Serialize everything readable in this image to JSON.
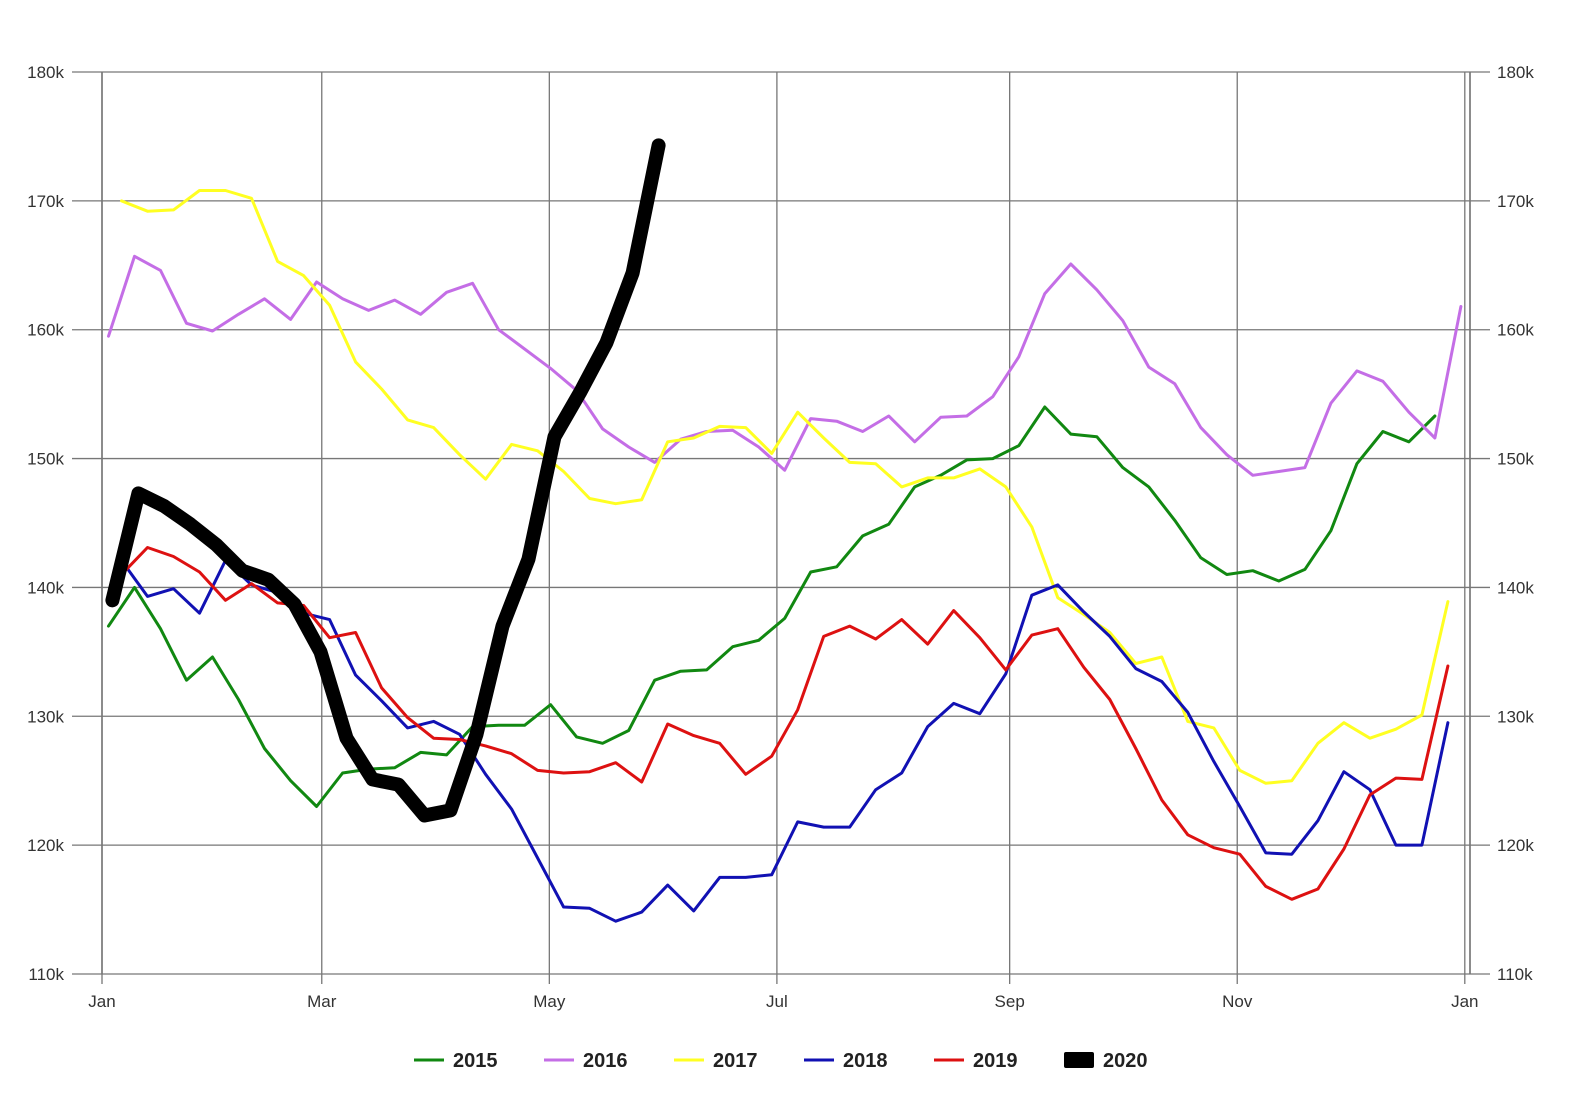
{
  "chart_data": {
    "type": "line",
    "title": "",
    "xlabel": "",
    "ylabel": "",
    "ylim": [
      110000,
      180000
    ],
    "yticks": [
      {
        "value": 110000,
        "label": "110k"
      },
      {
        "value": 120000,
        "label": "120k"
      },
      {
        "value": 130000,
        "label": "130k"
      },
      {
        "value": 140000,
        "label": "140k"
      },
      {
        "value": 150000,
        "label": "150k"
      },
      {
        "value": 160000,
        "label": "160k"
      },
      {
        "value": 170000,
        "label": "170k"
      },
      {
        "value": 180000,
        "label": "180k"
      }
    ],
    "y_axis_right_mirror": true,
    "x_unit": "week of year",
    "xlim": [
      0,
      52.6
    ],
    "xticks": [
      {
        "value": 0,
        "label": "Jan"
      },
      {
        "value": 8.45,
        "label": "Mar"
      },
      {
        "value": 17.2,
        "label": "May"
      },
      {
        "value": 25.95,
        "label": "Jul"
      },
      {
        "value": 34.9,
        "label": "Sep"
      },
      {
        "value": 43.65,
        "label": "Nov"
      },
      {
        "value": 52.4,
        "label": "Jan"
      }
    ],
    "grid": true,
    "legend_position": "bottom",
    "series": [
      {
        "name": "2015",
        "color": "#118811",
        "width": 3,
        "x": [
          0.25,
          1.25,
          2.25,
          3.25,
          4.25,
          5.25,
          6.25,
          7.25,
          8.25,
          9.25,
          10.25,
          11.25,
          12.25,
          13.25,
          14.25,
          15.25,
          16.25,
          17.25,
          18.25,
          19.25,
          20.25,
          21.25,
          22.25,
          23.25,
          24.25,
          25.25,
          26.25,
          27.25,
          28.25,
          29.25,
          30.25,
          31.25,
          32.25,
          33.25,
          34.25,
          35.25,
          36.25,
          37.25,
          38.25,
          39.25,
          40.25,
          41.25,
          42.25,
          43.25,
          44.25,
          45.25,
          46.25,
          47.25,
          48.25,
          49.25,
          50.25,
          51.25
        ],
        "y": [
          137000,
          140000,
          136800,
          132800,
          134600,
          131300,
          127500,
          125000,
          123000,
          125600,
          125900,
          126000,
          127200,
          127000,
          129200,
          129300,
          129300,
          130900,
          128400,
          127900,
          128900,
          132800,
          133500,
          133600,
          135400,
          135900,
          137600,
          141200,
          141600,
          144000,
          144900,
          147800,
          148700,
          149900,
          150000,
          151000,
          154000,
          151900,
          151700,
          149300,
          147800,
          145200,
          142300,
          141000,
          141300,
          140500,
          141400,
          144400,
          149600,
          152100,
          151300,
          153300
        ]
      },
      {
        "name": "2016",
        "color": "#c46ee6",
        "width": 3,
        "x": [
          0.25,
          1.25,
          2.25,
          3.25,
          4.25,
          5.25,
          6.25,
          7.25,
          8.25,
          9.25,
          10.25,
          11.25,
          12.25,
          13.25,
          14.25,
          15.25,
          16.25,
          17.25,
          18.25,
          19.25,
          20.25,
          21.25,
          22.25,
          23.25,
          24.25,
          25.25,
          26.25,
          27.25,
          28.25,
          29.25,
          30.25,
          31.25,
          32.25,
          33.25,
          34.25,
          35.25,
          36.25,
          37.25,
          38.25,
          39.25,
          40.25,
          41.25,
          42.25,
          43.25,
          44.25,
          45.25,
          46.25,
          47.25,
          48.25,
          49.25,
          50.25,
          51.25,
          52.25
        ],
        "y": [
          159500,
          165700,
          164600,
          160500,
          159900,
          161200,
          162400,
          160800,
          163700,
          162400,
          161500,
          162300,
          161200,
          162900,
          163600,
          160000,
          158500,
          157000,
          155300,
          152300,
          150900,
          149700,
          151500,
          152100,
          152200,
          150900,
          149100,
          153100,
          152900,
          152100,
          153300,
          151300,
          153200,
          153300,
          154800,
          157900,
          162800,
          165100,
          163100,
          160700,
          157100,
          155800,
          152400,
          150300,
          148700,
          149000,
          149300,
          154300,
          156800,
          156000,
          153600,
          151600,
          161800
        ]
      },
      {
        "name": "2017",
        "color": "#ffff22",
        "width": 3,
        "x": [
          0.75,
          1.75,
          2.75,
          3.75,
          4.75,
          5.75,
          6.75,
          7.75,
          8.75,
          9.75,
          10.75,
          11.75,
          12.75,
          13.75,
          14.75,
          15.75,
          16.75,
          17.75,
          18.75,
          19.75,
          20.75,
          21.75,
          22.75,
          23.75,
          24.75,
          25.75,
          26.75,
          27.75,
          28.75,
          29.75,
          30.75,
          31.75,
          32.75,
          33.75,
          34.75,
          35.75,
          36.75,
          37.75,
          38.75,
          39.75,
          40.75,
          41.75,
          42.75,
          43.75,
          44.75,
          45.75,
          46.75,
          47.75,
          48.75,
          49.75,
          50.75,
          51.75
        ],
        "y": [
          170000,
          169200,
          169300,
          170800,
          170800,
          170200,
          165300,
          164200,
          161900,
          157500,
          155400,
          153000,
          152400,
          150300,
          148400,
          151100,
          150600,
          149000,
          146900,
          146500,
          146800,
          151300,
          151600,
          152500,
          152400,
          150400,
          153600,
          151600,
          149700,
          149600,
          147800,
          148500,
          148500,
          149200,
          147800,
          144700,
          139200,
          137900,
          136500,
          134100,
          134600,
          129600,
          129100,
          125800,
          124800,
          125000,
          127900,
          129500,
          128300,
          129000,
          130100,
          138900
        ]
      },
      {
        "name": "2018",
        "color": "#1111b3",
        "width": 3,
        "x": [
          0.75,
          1.75,
          2.75,
          3.75,
          4.75,
          5.75,
          6.75,
          7.75,
          8.75,
          9.75,
          10.75,
          11.75,
          12.75,
          13.75,
          14.75,
          15.75,
          16.75,
          17.75,
          18.75,
          19.75,
          20.75,
          21.75,
          22.75,
          23.75,
          24.75,
          25.75,
          26.75,
          27.75,
          28.75,
          29.75,
          30.75,
          31.75,
          32.75,
          33.75,
          34.75,
          35.75,
          36.75,
          37.75,
          38.75,
          39.75,
          40.75,
          41.75,
          42.75,
          43.75,
          44.75,
          45.75,
          46.75,
          47.75,
          48.75,
          49.75,
          50.75,
          51.75
        ],
        "y": [
          142100,
          139300,
          139900,
          138000,
          142100,
          140200,
          139600,
          138000,
          137500,
          133200,
          131200,
          129100,
          129600,
          128600,
          125500,
          122800,
          119000,
          115200,
          115100,
          114100,
          114800,
          116900,
          114900,
          117500,
          117500,
          117700,
          121800,
          121400,
          121400,
          124300,
          125600,
          129200,
          131000,
          130200,
          133300,
          139400,
          140200,
          138100,
          136200,
          133700,
          132700,
          130300,
          126500,
          123000,
          119400,
          119300,
          121900,
          125700,
          124300,
          120000,
          120000,
          129500
        ]
      },
      {
        "name": "2019",
        "color": "#dd1111",
        "width": 3,
        "x": [
          0.75,
          1.75,
          2.75,
          3.75,
          4.75,
          5.75,
          6.75,
          7.75,
          8.75,
          9.75,
          10.75,
          11.75,
          12.75,
          13.75,
          14.75,
          15.75,
          16.75,
          17.75,
          18.75,
          19.75,
          20.75,
          21.75,
          22.75,
          23.75,
          24.75,
          25.75,
          26.75,
          27.75,
          28.75,
          29.75,
          30.75,
          31.75,
          32.75,
          33.75,
          34.75,
          35.75,
          36.75,
          37.75,
          38.75,
          39.75,
          40.75,
          41.75,
          42.75,
          43.75,
          44.75,
          45.75,
          46.75,
          47.75,
          48.75,
          49.75,
          50.75,
          51.75
        ],
        "y": [
          141000,
          143100,
          142400,
          141200,
          139000,
          140300,
          138800,
          138600,
          136100,
          136500,
          132200,
          129900,
          128300,
          128200,
          127700,
          127100,
          125800,
          125600,
          125700,
          126400,
          124900,
          129400,
          128500,
          127900,
          125500,
          126900,
          130500,
          136200,
          137000,
          136000,
          137500,
          135600,
          138200,
          136100,
          133600,
          136300,
          136800,
          133800,
          131300,
          127500,
          123500,
          120800,
          119800,
          119300,
          116800,
          115800,
          116600,
          119700,
          123900,
          125200,
          125100,
          133900
        ]
      },
      {
        "name": "2020",
        "color": "#000000",
        "width": 14,
        "x": [
          0.4,
          1.4,
          2.4,
          3.4,
          4.4,
          5.4,
          6.4,
          7.4,
          8.4,
          9.4,
          10.4,
          11.4,
          12.4,
          13.4,
          14.4,
          15.4,
          16.4,
          17.4,
          18.4,
          19.4,
          20.4,
          21.4
        ],
        "y": [
          139000,
          147300,
          146300,
          144900,
          143300,
          141300,
          140600,
          138700,
          135000,
          128300,
          125100,
          124700,
          122300,
          122700,
          128600,
          137000,
          142200,
          151700,
          155200,
          159000,
          164400,
          174300
        ]
      }
    ]
  }
}
